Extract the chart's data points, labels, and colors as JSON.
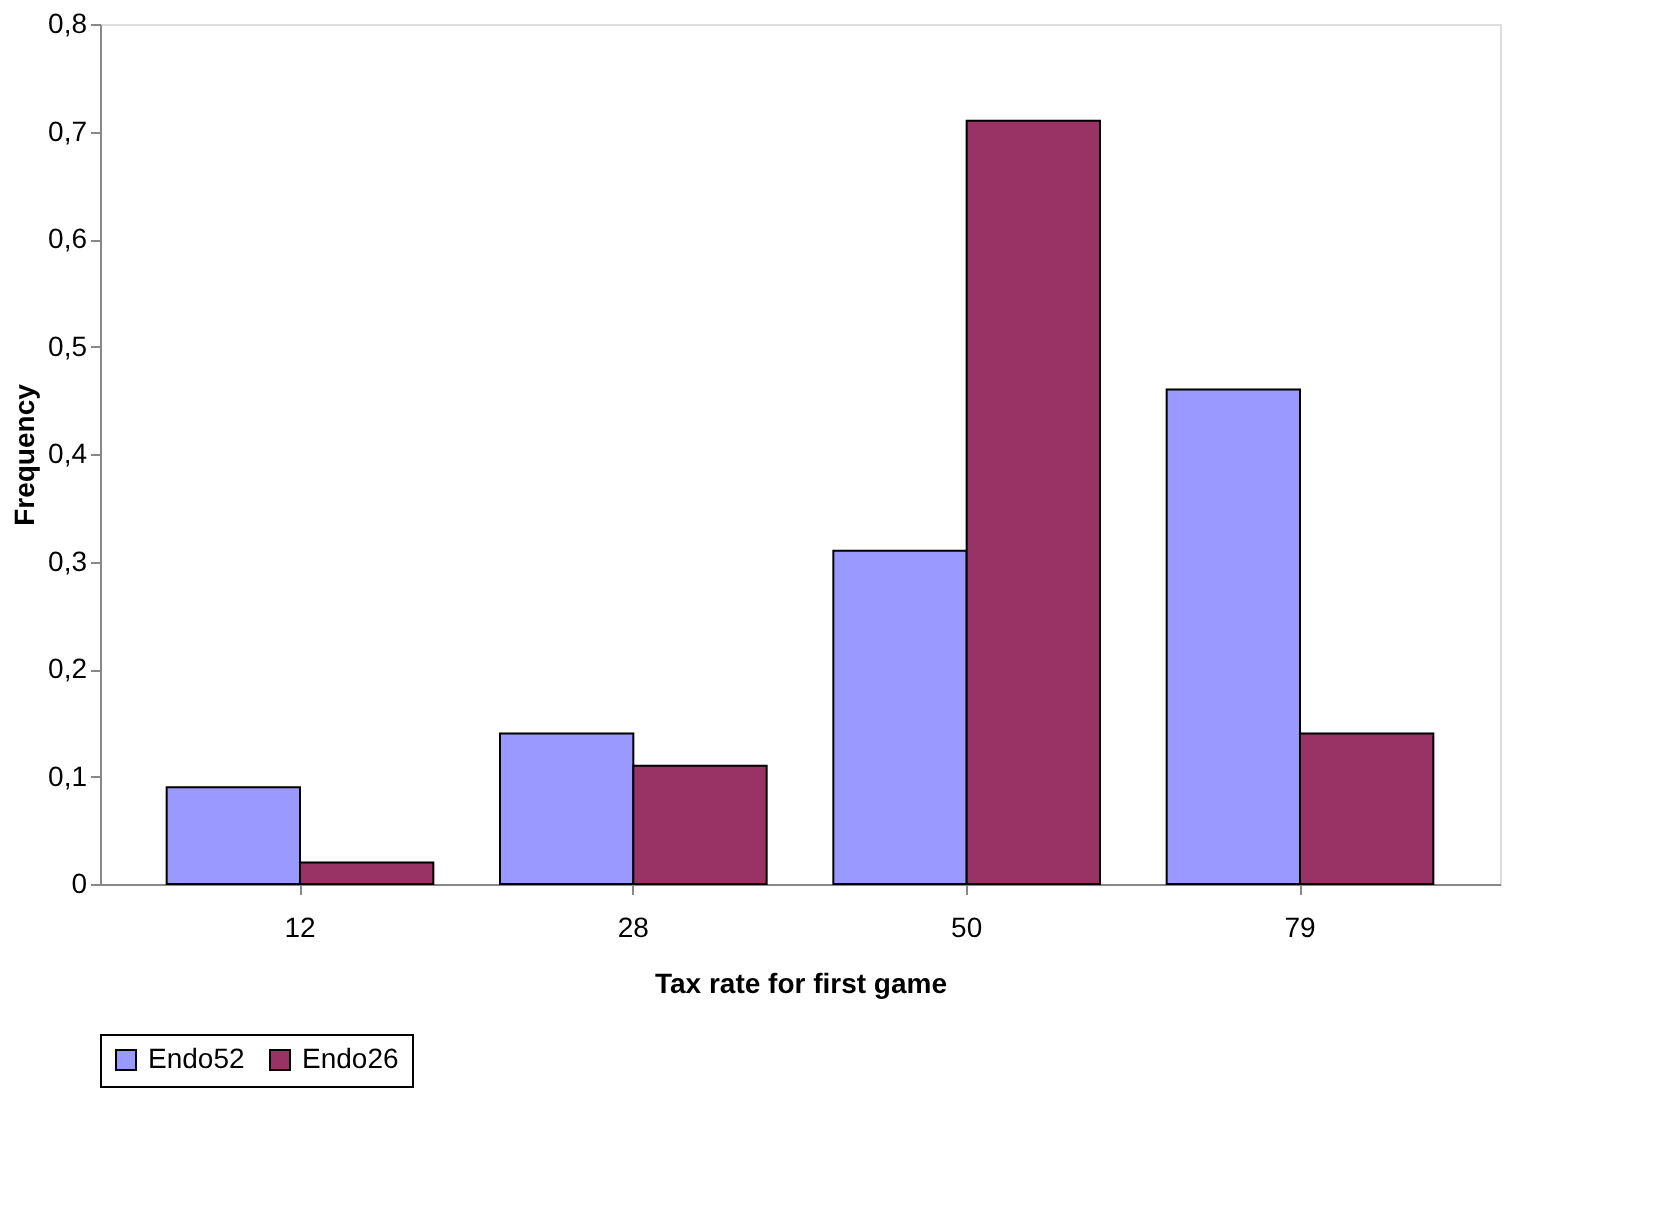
{
  "chart_data": {
    "type": "bar",
    "xlabel": "Tax rate for first game",
    "ylabel": "Frequency",
    "categories": [
      "12",
      "28",
      "50",
      "79"
    ],
    "series": [
      {
        "name": "Endo52",
        "color": "#9999ff",
        "values": [
          0.09,
          0.14,
          0.31,
          0.46
        ]
      },
      {
        "name": "Endo26",
        "color": "#993366",
        "values": [
          0.02,
          0.11,
          0.71,
          0.14
        ]
      }
    ],
    "ylim": [
      0,
      0.8
    ],
    "yticks": [
      {
        "value": 0,
        "label": "0"
      },
      {
        "value": 0.1,
        "label": "0,1"
      },
      {
        "value": 0.2,
        "label": "0,2"
      },
      {
        "value": 0.3,
        "label": "0,3"
      },
      {
        "value": 0.4,
        "label": "0,4"
      },
      {
        "value": 0.5,
        "label": "0,5"
      },
      {
        "value": 0.6,
        "label": "0,6"
      },
      {
        "value": 0.7,
        "label": "0,7"
      },
      {
        "value": 0.8,
        "label": "0,8"
      }
    ],
    "grid": false,
    "legend": "bottom"
  }
}
